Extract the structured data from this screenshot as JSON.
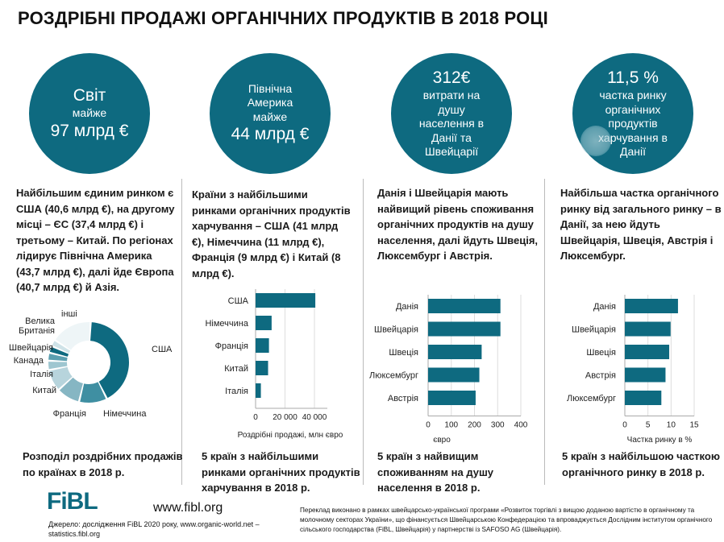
{
  "title": "РОЗДРІБНІ ПРОДАЖІ ОРГАНІЧНИХ ПРОДУКТІВ В 2018 РОЦІ",
  "circles": [
    {
      "lines": [
        "Світ",
        "майже",
        "97 млрд €"
      ]
    },
    {
      "lines": [
        "Північна",
        "Америка",
        "майже",
        "44 млрд €"
      ]
    },
    {
      "lines": [
        "312€",
        "витрати на",
        "душу",
        "населення в",
        "Данії та",
        "Швейцарії"
      ]
    },
    {
      "lines": [
        "11,5 %",
        "частка ринку",
        "органічних",
        "продуктів",
        "харчування в",
        "Данії"
      ]
    }
  ],
  "texts": [
    "Найбільшим єдиним ринком є США (40,6 млрд €), на другому місці – ЄС (37,4 млрд €) і третьому – Китай. По регіонах лідирує Північна Америка (43,7 млрд €), далі йде Європа (40,7 млрд €) й Азія.",
    "Країни з найбільшими ринками органічних продуктів харчування – США (41 млрд €), Німеччина (11 млрд €), Франція (9 млрд €) і Китай (8 млрд €).",
    "Данія і Швейцарія мають найвищий рівень споживання органічних продуктів на душу населення, далі йдуть Швеція, Люксембург і Австрія.",
    "Найбільша частка органічного ринку від загального ринку – в Данії, за нею йдуть Швейцарія, Швеція, Австрія і Люксембург."
  ],
  "captions": [
    "Розподіл роздрібних продажів по країнах в 2018 р.",
    "5 країн з найбільшими ринками органічних продуктів харчування в 2018 р.",
    "5 країн з найвищим споживанням на душу населення в 2018 р.",
    "5 країн з найбільшою часткою органічного ринку в 2018 р."
  ],
  "chart_data": [
    {
      "type": "pie",
      "title": "Розподіл роздрібних продажів по країнах в 2018 р.",
      "categories": [
        "США",
        "Німеччина",
        "Франція",
        "Китай",
        "Італія",
        "Канада",
        "Швейцарія",
        "Велика Британія",
        "інші"
      ],
      "values": [
        40.6,
        10.9,
        9.1,
        8.5,
        3.6,
        3.1,
        2.7,
        2.6,
        16
      ],
      "colors": [
        "#0e6a80",
        "#3f8fa2",
        "#86b6c3",
        "#b7d4dc",
        "#9ec6d0",
        "#5b9fb0",
        "#0e6a80",
        "#cfe3e8",
        "#eef5f7"
      ]
    },
    {
      "type": "bar",
      "orientation": "horizontal",
      "categories": [
        "США",
        "Німеччина",
        "Франція",
        "Китай",
        "Італія"
      ],
      "values": [
        40600,
        10900,
        9100,
        8500,
        3600
      ],
      "xlabel": "Роздрібні продажі, млн євро",
      "xlim": [
        0,
        50000
      ],
      "ticks": [
        0,
        20000,
        40000
      ],
      "tick_labels": [
        "0",
        "20 000",
        "40 000"
      ]
    },
    {
      "type": "bar",
      "orientation": "horizontal",
      "categories": [
        "Данія",
        "Швейцарія",
        "Швеція",
        "Люксембург",
        "Австрія"
      ],
      "values": [
        312,
        312,
        231,
        221,
        205
      ],
      "xlabel": "євро",
      "xlim": [
        0,
        400
      ],
      "ticks": [
        0,
        100,
        200,
        300,
        400
      ],
      "tick_labels": [
        "0",
        "100",
        "200",
        "300",
        "400"
      ]
    },
    {
      "type": "bar",
      "orientation": "horizontal",
      "categories": [
        "Данія",
        "Швейцарія",
        "Швеція",
        "Австрія",
        "Люксембург"
      ],
      "values": [
        11.5,
        9.9,
        9.6,
        8.8,
        7.9
      ],
      "xlabel": "Частка ринку в %",
      "xlim": [
        0,
        15
      ],
      "ticks": [
        0,
        5,
        10,
        15
      ],
      "tick_labels": [
        "0",
        "5",
        "10",
        "15"
      ]
    }
  ],
  "bar_color": "#0e6a80",
  "footer": {
    "logo": "FiBL",
    "url": "www.fibl.org",
    "source": "Джерело: дослідження FiBL 2020 року, www.organic-world.net – statistics.fibl.org",
    "translation": "Переклад виконано в рамках швейцарсько-української програми «Розвиток торгівлі з вищою доданою вартістю в органічному та молочному секторах України», що фінансується Швейцарською Конфедерацією та впроваджується Дослідним інститутом органічного сільського господарства (FiBL, Швейцарія) у партнерстві із SAFOSO AG (Швейцарія)."
  }
}
